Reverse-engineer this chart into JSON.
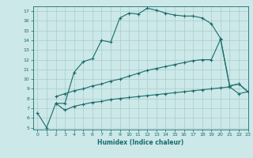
{
  "xlabel": "Humidex (Indice chaleur)",
  "bg_color": "#cce8e8",
  "grid_color": "#aacccc",
  "line_color": "#1a6b6b",
  "xlim": [
    -0.5,
    23
  ],
  "ylim": [
    4.8,
    17.5
  ],
  "yticks": [
    5,
    6,
    7,
    8,
    9,
    10,
    11,
    12,
    13,
    14,
    15,
    16,
    17
  ],
  "xticks": [
    0,
    1,
    2,
    3,
    4,
    5,
    6,
    7,
    8,
    9,
    10,
    11,
    12,
    13,
    14,
    15,
    16,
    17,
    18,
    19,
    20,
    21,
    22,
    23
  ],
  "line1_x": [
    0,
    1,
    2,
    3,
    4,
    5,
    6,
    7,
    8,
    9,
    10,
    11,
    12,
    13,
    14,
    15,
    16,
    17,
    18,
    19,
    20,
    21,
    22,
    23
  ],
  "line1_y": [
    6.5,
    5.0,
    7.5,
    7.5,
    10.7,
    11.8,
    12.1,
    14.0,
    13.8,
    16.3,
    16.8,
    16.7,
    17.3,
    17.1,
    16.8,
    16.6,
    16.5,
    16.5,
    16.3,
    15.7,
    14.2,
    9.3,
    9.5,
    8.7
  ],
  "line2_x": [
    2,
    3,
    4,
    5,
    6,
    7,
    8,
    9,
    10,
    11,
    12,
    13,
    14,
    15,
    16,
    17,
    18,
    19,
    20,
    21,
    22,
    23
  ],
  "line2_y": [
    8.2,
    8.5,
    8.8,
    9.0,
    9.3,
    9.5,
    9.8,
    10.0,
    10.3,
    10.6,
    10.9,
    11.1,
    11.3,
    11.5,
    11.7,
    11.9,
    12.0,
    12.0,
    14.1,
    9.3,
    9.5,
    8.7
  ],
  "line3_x": [
    2,
    3,
    4,
    5,
    6,
    7,
    8,
    9,
    10,
    11,
    12,
    13,
    14,
    15,
    16,
    17,
    18,
    19,
    20,
    21,
    22,
    23
  ],
  "line3_y": [
    7.5,
    6.8,
    7.2,
    7.4,
    7.6,
    7.7,
    7.9,
    8.0,
    8.1,
    8.2,
    8.3,
    8.4,
    8.5,
    8.6,
    8.7,
    8.8,
    8.9,
    9.0,
    9.1,
    9.2,
    8.5,
    8.7
  ]
}
